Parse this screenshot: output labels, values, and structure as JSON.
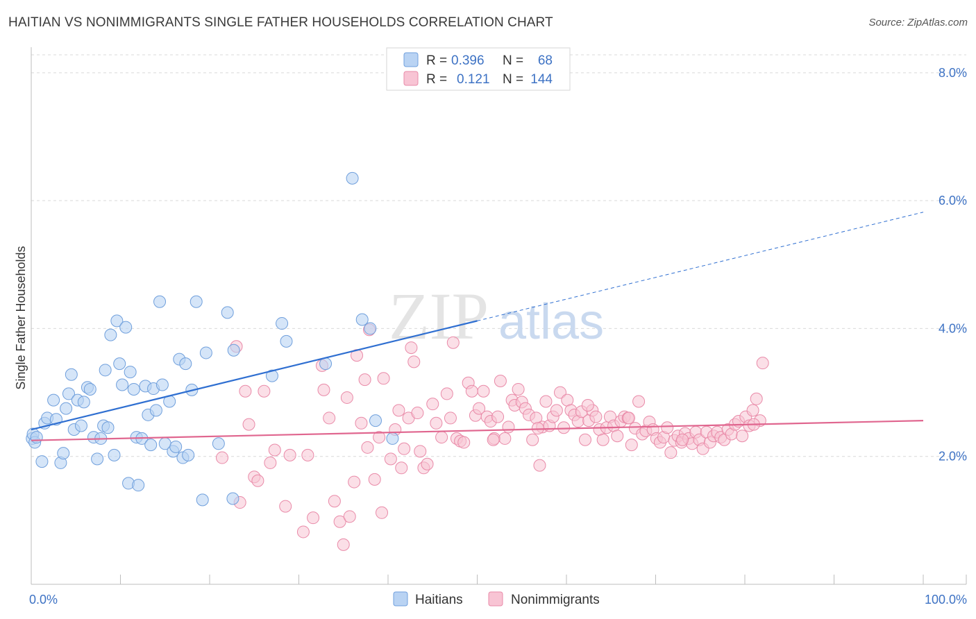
{
  "title": "HAITIAN VS NONIMMIGRANTS SINGLE FATHER HOUSEHOLDS CORRELATION CHART",
  "source": "Source: ZipAtlas.com",
  "watermark": {
    "part1": "ZIP",
    "part2": "atlas"
  },
  "colors": {
    "haitians_fill": "#b9d3f3",
    "haitians_stroke": "#6f9fdc",
    "haitians_line": "#2f6fd1",
    "nonimm_fill": "#f8c4d4",
    "nonimm_stroke": "#e98aa8",
    "nonimm_line": "#e0668f",
    "tick": "#3d72c4",
    "grid": "#d9d9d9"
  },
  "legend": {
    "rows": [
      {
        "r_label": "R =",
        "r_value": "0.396",
        "n_label": "N =",
        "n_value": "68"
      },
      {
        "r_label": "R =",
        "r_value": "0.121",
        "n_label": "N =",
        "n_value": "144"
      }
    ]
  },
  "chart_data": {
    "type": "scatter",
    "title": "HAITIAN VS NONIMMIGRANTS SINGLE FATHER HOUSEHOLDS CORRELATION CHART",
    "xlabel": "",
    "ylabel": "Single Father Households",
    "xlim": [
      0,
      100
    ],
    "ylim": [
      0,
      8.4
    ],
    "x_tick_labels": [
      "0.0%",
      "100.0%"
    ],
    "y_ticks": [
      2,
      4,
      6,
      8
    ],
    "y_tick_labels": [
      "2.0%",
      "4.0%",
      "6.0%",
      "8.0%"
    ],
    "grid": true,
    "legend_position": "top-center",
    "series": [
      {
        "name": "Haitians",
        "r": 0.396,
        "n": 68,
        "trend": {
          "x0": 0,
          "y0": 2.42,
          "x1": 50,
          "y1": 4.12,
          "dashed_to_x": 100,
          "dashed_to_y": 5.82
        },
        "points": [
          [
            0.1,
            2.28
          ],
          [
            0.2,
            2.35
          ],
          [
            0.4,
            2.22
          ],
          [
            0.6,
            2.3
          ],
          [
            1.2,
            1.92
          ],
          [
            1.5,
            2.52
          ],
          [
            1.8,
            2.6
          ],
          [
            2.5,
            2.88
          ],
          [
            2.8,
            2.58
          ],
          [
            3.3,
            1.9
          ],
          [
            3.6,
            2.05
          ],
          [
            3.9,
            2.75
          ],
          [
            4.2,
            2.98
          ],
          [
            4.5,
            3.28
          ],
          [
            4.8,
            2.42
          ],
          [
            5.2,
            2.88
          ],
          [
            5.6,
            2.48
          ],
          [
            5.9,
            2.85
          ],
          [
            6.3,
            3.08
          ],
          [
            6.6,
            3.05
          ],
          [
            7.0,
            2.3
          ],
          [
            7.4,
            1.96
          ],
          [
            7.8,
            2.28
          ],
          [
            8.1,
            2.48
          ],
          [
            8.3,
            3.35
          ],
          [
            8.6,
            2.45
          ],
          [
            8.9,
            3.9
          ],
          [
            9.3,
            2.02
          ],
          [
            9.6,
            4.12
          ],
          [
            9.9,
            3.45
          ],
          [
            10.2,
            3.12
          ],
          [
            10.6,
            4.02
          ],
          [
            10.9,
            1.58
          ],
          [
            11.1,
            3.32
          ],
          [
            11.5,
            3.05
          ],
          [
            11.8,
            2.3
          ],
          [
            12.0,
            1.55
          ],
          [
            12.4,
            2.28
          ],
          [
            12.8,
            3.1
          ],
          [
            13.1,
            2.65
          ],
          [
            13.4,
            2.18
          ],
          [
            13.7,
            3.06
          ],
          [
            14.0,
            2.72
          ],
          [
            14.4,
            4.42
          ],
          [
            14.7,
            3.12
          ],
          [
            15.0,
            2.2
          ],
          [
            15.5,
            2.86
          ],
          [
            15.9,
            2.08
          ],
          [
            16.2,
            2.15
          ],
          [
            16.6,
            3.52
          ],
          [
            17.0,
            1.98
          ],
          [
            17.3,
            3.45
          ],
          [
            17.6,
            2.02
          ],
          [
            18.0,
            3.04
          ],
          [
            18.5,
            4.42
          ],
          [
            19.2,
            1.32
          ],
          [
            19.6,
            3.62
          ],
          [
            21.0,
            2.2
          ],
          [
            22.0,
            4.25
          ],
          [
            22.6,
            1.34
          ],
          [
            22.7,
            3.66
          ],
          [
            27.0,
            3.26
          ],
          [
            28.1,
            4.08
          ],
          [
            28.6,
            3.8
          ],
          [
            33.0,
            3.45
          ],
          [
            36.0,
            6.35
          ],
          [
            37.1,
            4.14
          ],
          [
            38.0,
            4.0
          ],
          [
            38.6,
            2.56
          ],
          [
            40.5,
            2.28
          ]
        ]
      },
      {
        "name": "Nonimmigrants",
        "r": 0.121,
        "n": 144,
        "trend": {
          "x0": 0,
          "y0": 2.25,
          "x1": 100,
          "y1": 2.56
        },
        "points": [
          [
            21.4,
            1.98
          ],
          [
            23.0,
            3.72
          ],
          [
            23.4,
            1.28
          ],
          [
            24.0,
            3.02
          ],
          [
            24.4,
            2.5
          ],
          [
            25.0,
            1.68
          ],
          [
            25.4,
            1.62
          ],
          [
            26.1,
            3.02
          ],
          [
            26.8,
            1.9
          ],
          [
            27.3,
            2.1
          ],
          [
            28.5,
            1.22
          ],
          [
            29.0,
            2.02
          ],
          [
            30.5,
            0.82
          ],
          [
            31.0,
            2.02
          ],
          [
            31.6,
            1.04
          ],
          [
            32.6,
            3.42
          ],
          [
            32.8,
            3.04
          ],
          [
            33.4,
            2.6
          ],
          [
            34.0,
            1.3
          ],
          [
            34.6,
            0.98
          ],
          [
            35.0,
            0.62
          ],
          [
            35.4,
            2.92
          ],
          [
            35.7,
            1.06
          ],
          [
            36.2,
            1.6
          ],
          [
            36.5,
            3.58
          ],
          [
            37.0,
            2.52
          ],
          [
            37.4,
            3.2
          ],
          [
            37.7,
            2.14
          ],
          [
            37.9,
            3.98
          ],
          [
            38.5,
            1.64
          ],
          [
            39.0,
            2.3
          ],
          [
            39.3,
            1.12
          ],
          [
            39.5,
            3.22
          ],
          [
            40.3,
            1.96
          ],
          [
            40.8,
            2.42
          ],
          [
            41.2,
            2.72
          ],
          [
            41.5,
            1.82
          ],
          [
            41.8,
            2.12
          ],
          [
            42.3,
            2.6
          ],
          [
            42.6,
            3.7
          ],
          [
            42.9,
            3.48
          ],
          [
            43.3,
            2.68
          ],
          [
            43.6,
            2.08
          ],
          [
            44.0,
            1.82
          ],
          [
            44.4,
            1.88
          ],
          [
            45.0,
            2.82
          ],
          [
            45.4,
            2.52
          ],
          [
            46.0,
            2.3
          ],
          [
            46.6,
            2.98
          ],
          [
            47.0,
            2.6
          ],
          [
            47.3,
            3.78
          ],
          [
            47.7,
            2.28
          ],
          [
            48.1,
            2.24
          ],
          [
            48.5,
            2.22
          ],
          [
            49.0,
            3.15
          ],
          [
            49.4,
            3.02
          ],
          [
            49.8,
            2.64
          ],
          [
            50.2,
            2.75
          ],
          [
            50.7,
            3.02
          ],
          [
            51.1,
            2.62
          ],
          [
            51.5,
            2.55
          ],
          [
            51.9,
            2.28
          ],
          [
            52.3,
            2.62
          ],
          [
            52.6,
            3.18
          ],
          [
            53.1,
            2.28
          ],
          [
            53.5,
            2.46
          ],
          [
            53.9,
            2.88
          ],
          [
            54.2,
            2.8
          ],
          [
            54.6,
            3.05
          ],
          [
            55.0,
            2.85
          ],
          [
            55.4,
            2.75
          ],
          [
            55.8,
            2.65
          ],
          [
            56.2,
            2.26
          ],
          [
            56.6,
            2.6
          ],
          [
            57.0,
            1.86
          ],
          [
            57.3,
            2.46
          ],
          [
            57.7,
            2.86
          ],
          [
            58.1,
            2.48
          ],
          [
            58.5,
            2.62
          ],
          [
            58.9,
            2.72
          ],
          [
            59.3,
            3.0
          ],
          [
            59.7,
            2.45
          ],
          [
            60.1,
            2.88
          ],
          [
            60.5,
            2.72
          ],
          [
            60.9,
            2.65
          ],
          [
            61.3,
            2.55
          ],
          [
            61.7,
            2.7
          ],
          [
            62.1,
            2.26
          ],
          [
            62.5,
            2.56
          ],
          [
            62.9,
            2.72
          ],
          [
            63.3,
            2.62
          ],
          [
            63.7,
            2.42
          ],
          [
            64.1,
            2.26
          ],
          [
            64.5,
            2.45
          ],
          [
            64.9,
            2.62
          ],
          [
            65.3,
            2.48
          ],
          [
            65.7,
            2.32
          ],
          [
            66.1,
            2.55
          ],
          [
            66.5,
            2.62
          ],
          [
            66.9,
            2.6
          ],
          [
            67.3,
            2.18
          ],
          [
            67.7,
            2.44
          ],
          [
            68.1,
            2.86
          ],
          [
            68.5,
            2.35
          ],
          [
            68.9,
            2.4
          ],
          [
            69.3,
            2.54
          ],
          [
            69.7,
            2.42
          ],
          [
            70.1,
            2.28
          ],
          [
            70.5,
            2.22
          ],
          [
            70.9,
            2.3
          ],
          [
            71.3,
            2.45
          ],
          [
            71.7,
            2.06
          ],
          [
            72.1,
            2.25
          ],
          [
            72.5,
            2.32
          ],
          [
            72.9,
            2.22
          ],
          [
            73.3,
            2.36
          ],
          [
            73.7,
            2.28
          ],
          [
            74.1,
            2.2
          ],
          [
            74.5,
            2.38
          ],
          [
            74.9,
            2.26
          ],
          [
            75.3,
            2.12
          ],
          [
            75.7,
            2.38
          ],
          [
            76.1,
            2.22
          ],
          [
            76.5,
            2.32
          ],
          [
            76.9,
            2.38
          ],
          [
            77.3,
            2.3
          ],
          [
            77.7,
            2.26
          ],
          [
            78.1,
            2.42
          ],
          [
            78.5,
            2.35
          ],
          [
            78.9,
            2.5
          ],
          [
            79.3,
            2.55
          ],
          [
            79.7,
            2.32
          ],
          [
            80.1,
            2.62
          ],
          [
            80.5,
            2.48
          ],
          [
            80.9,
            2.72
          ],
          [
            81.3,
            2.9
          ],
          [
            81.7,
            2.56
          ],
          [
            82.0,
            3.46
          ],
          [
            81.0,
            2.5
          ],
          [
            73.0,
            2.26
          ],
          [
            67.0,
            2.6
          ],
          [
            62.4,
            2.8
          ],
          [
            56.8,
            2.44
          ],
          [
            51.8,
            2.26
          ]
        ]
      }
    ]
  },
  "bottom_legend": [
    {
      "label": "Haitians"
    },
    {
      "label": "Nonimmigrants"
    }
  ]
}
